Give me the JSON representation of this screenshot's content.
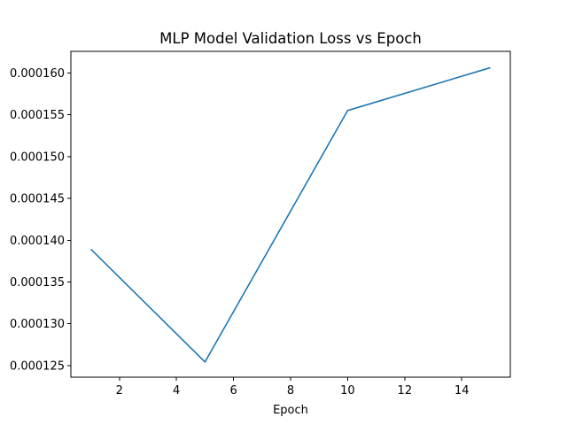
{
  "chart_data": {
    "type": "line",
    "title": "MLP Model Validation Loss vs Epoch",
    "xlabel": "Epoch",
    "ylabel": "",
    "x": [
      1,
      5,
      10,
      15
    ],
    "series": [
      {
        "values": [
          0.000138915,
          0.000125423,
          0.000155521,
          0.000160646
        ],
        "color": "#1f77b4"
      }
    ],
    "xlim": [
      0.3,
      15.7
    ],
    "ylim": [
      0.0001236,
      0.0001626
    ],
    "xticks": [
      2,
      4,
      6,
      8,
      10,
      12,
      14
    ],
    "xtick_labels": [
      "2",
      "4",
      "6",
      "8",
      "10",
      "12",
      "14"
    ],
    "yticks": [
      0.000125,
      0.00013,
      0.000135,
      0.00014,
      0.000145,
      0.00015,
      0.000155,
      0.00016
    ],
    "ytick_labels": [
      "0.000125",
      "0.000130",
      "0.000135",
      "0.000140",
      "0.000145",
      "0.000150",
      "0.000155",
      "0.000160"
    ],
    "grid": false,
    "legend": false
  }
}
